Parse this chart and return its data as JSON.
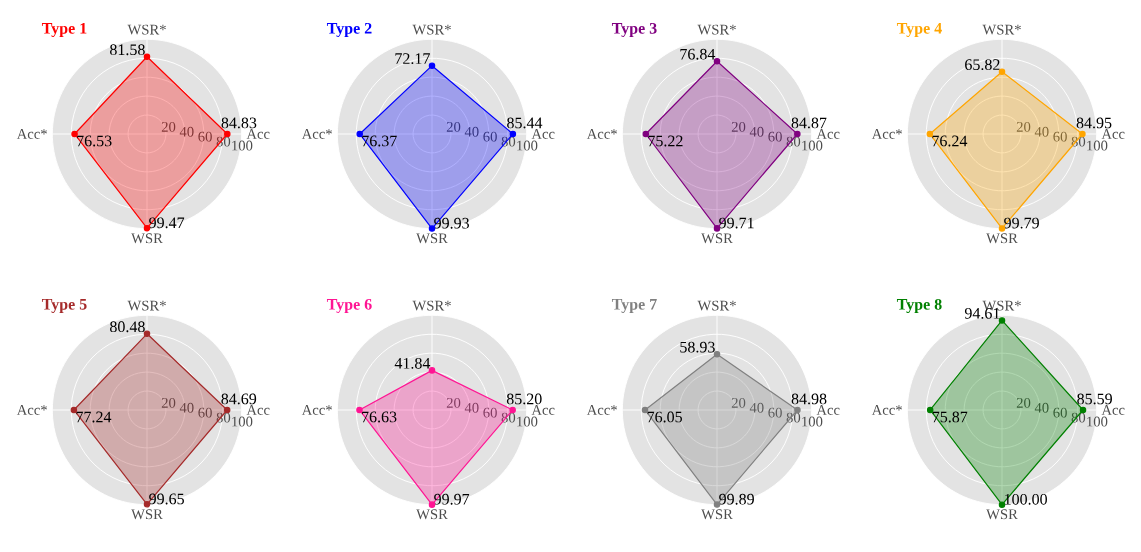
{
  "chart_data": [
    {
      "type": "radar",
      "title": "Type 1",
      "categories": [
        "WSR*",
        "Acc",
        "WSR",
        "Acc*"
      ],
      "ylim": [
        0,
        100
      ],
      "yticks": [
        20,
        40,
        60,
        80,
        100
      ],
      "marker": "circle",
      "series": [
        {
          "color": "#ff0000",
          "values": [
            81.58,
            84.83,
            99.47,
            76.53
          ],
          "value_labels": [
            "81.58",
            "84.83",
            "99.47",
            "76.53"
          ]
        }
      ]
    },
    {
      "type": "radar",
      "title": "Type 2",
      "categories": [
        "WSR*",
        "Acc",
        "WSR",
        "Acc*"
      ],
      "ylim": [
        0,
        100
      ],
      "yticks": [
        20,
        40,
        60,
        80,
        100
      ],
      "marker": "circle",
      "series": [
        {
          "color": "#0000ff",
          "values": [
            72.17,
            85.44,
            99.93,
            76.37
          ],
          "value_labels": [
            "72.17",
            "85.44",
            "99.93",
            "76.37"
          ]
        }
      ]
    },
    {
      "type": "radar",
      "title": "Type 3",
      "categories": [
        "WSR*",
        "Acc",
        "WSR",
        "Acc*"
      ],
      "ylim": [
        0,
        100
      ],
      "yticks": [
        20,
        40,
        60,
        80,
        100
      ],
      "marker": "circle",
      "series": [
        {
          "color": "#800080",
          "values": [
            76.84,
            84.87,
            99.71,
            75.22
          ],
          "value_labels": [
            "76.84",
            "84.87",
            "99.71",
            "75.22"
          ]
        }
      ]
    },
    {
      "type": "radar",
      "title": "Type 4",
      "categories": [
        "WSR*",
        "Acc",
        "WSR",
        "Acc*"
      ],
      "ylim": [
        0,
        100
      ],
      "yticks": [
        20,
        40,
        60,
        80,
        100
      ],
      "marker": "circle",
      "series": [
        {
          "color": "#ffa500",
          "values": [
            65.82,
            84.95,
            99.79,
            76.24
          ],
          "value_labels": [
            "65.82",
            "84.95",
            "99.79",
            "76.24"
          ]
        }
      ]
    },
    {
      "type": "radar",
      "title": "Type 5",
      "categories": [
        "WSR*",
        "Acc",
        "WSR",
        "Acc*"
      ],
      "ylim": [
        0,
        100
      ],
      "yticks": [
        20,
        40,
        60,
        80,
        100
      ],
      "marker": "circle",
      "series": [
        {
          "color": "#a52a2a",
          "values": [
            80.48,
            84.69,
            99.65,
            77.24
          ],
          "value_labels": [
            "80.48",
            "84.69",
            "99.65",
            "77.24"
          ]
        }
      ]
    },
    {
      "type": "radar",
      "title": "Type 6",
      "categories": [
        "WSR*",
        "Acc",
        "WSR",
        "Acc*"
      ],
      "ylim": [
        0,
        100
      ],
      "yticks": [
        20,
        40,
        60,
        80,
        100
      ],
      "marker": "circle",
      "series": [
        {
          "color": "#ff1493",
          "values": [
            41.84,
            85.2,
            99.97,
            76.63
          ],
          "value_labels": [
            "41.84",
            "85.20",
            "99.97",
            "76.63"
          ]
        }
      ]
    },
    {
      "type": "radar",
      "title": "Type 7",
      "categories": [
        "WSR*",
        "Acc",
        "WSR",
        "Acc*"
      ],
      "ylim": [
        0,
        100
      ],
      "yticks": [
        20,
        40,
        60,
        80,
        100
      ],
      "marker": "circle",
      "series": [
        {
          "color": "#808080",
          "values": [
            58.93,
            84.98,
            99.89,
            76.05
          ],
          "value_labels": [
            "58.93",
            "84.98",
            "99.89",
            "76.05"
          ]
        }
      ]
    },
    {
      "type": "radar",
      "title": "Type 8",
      "categories": [
        "WSR*",
        "Acc",
        "WSR",
        "Acc*"
      ],
      "ylim": [
        0,
        100
      ],
      "yticks": [
        20,
        40,
        60,
        80,
        100
      ],
      "marker": "circle",
      "series": [
        {
          "color": "#008000",
          "values": [
            94.61,
            85.59,
            100.0,
            75.87
          ],
          "value_labels": [
            "94.61",
            "85.59",
            "100.00",
            "75.87"
          ]
        }
      ]
    }
  ]
}
